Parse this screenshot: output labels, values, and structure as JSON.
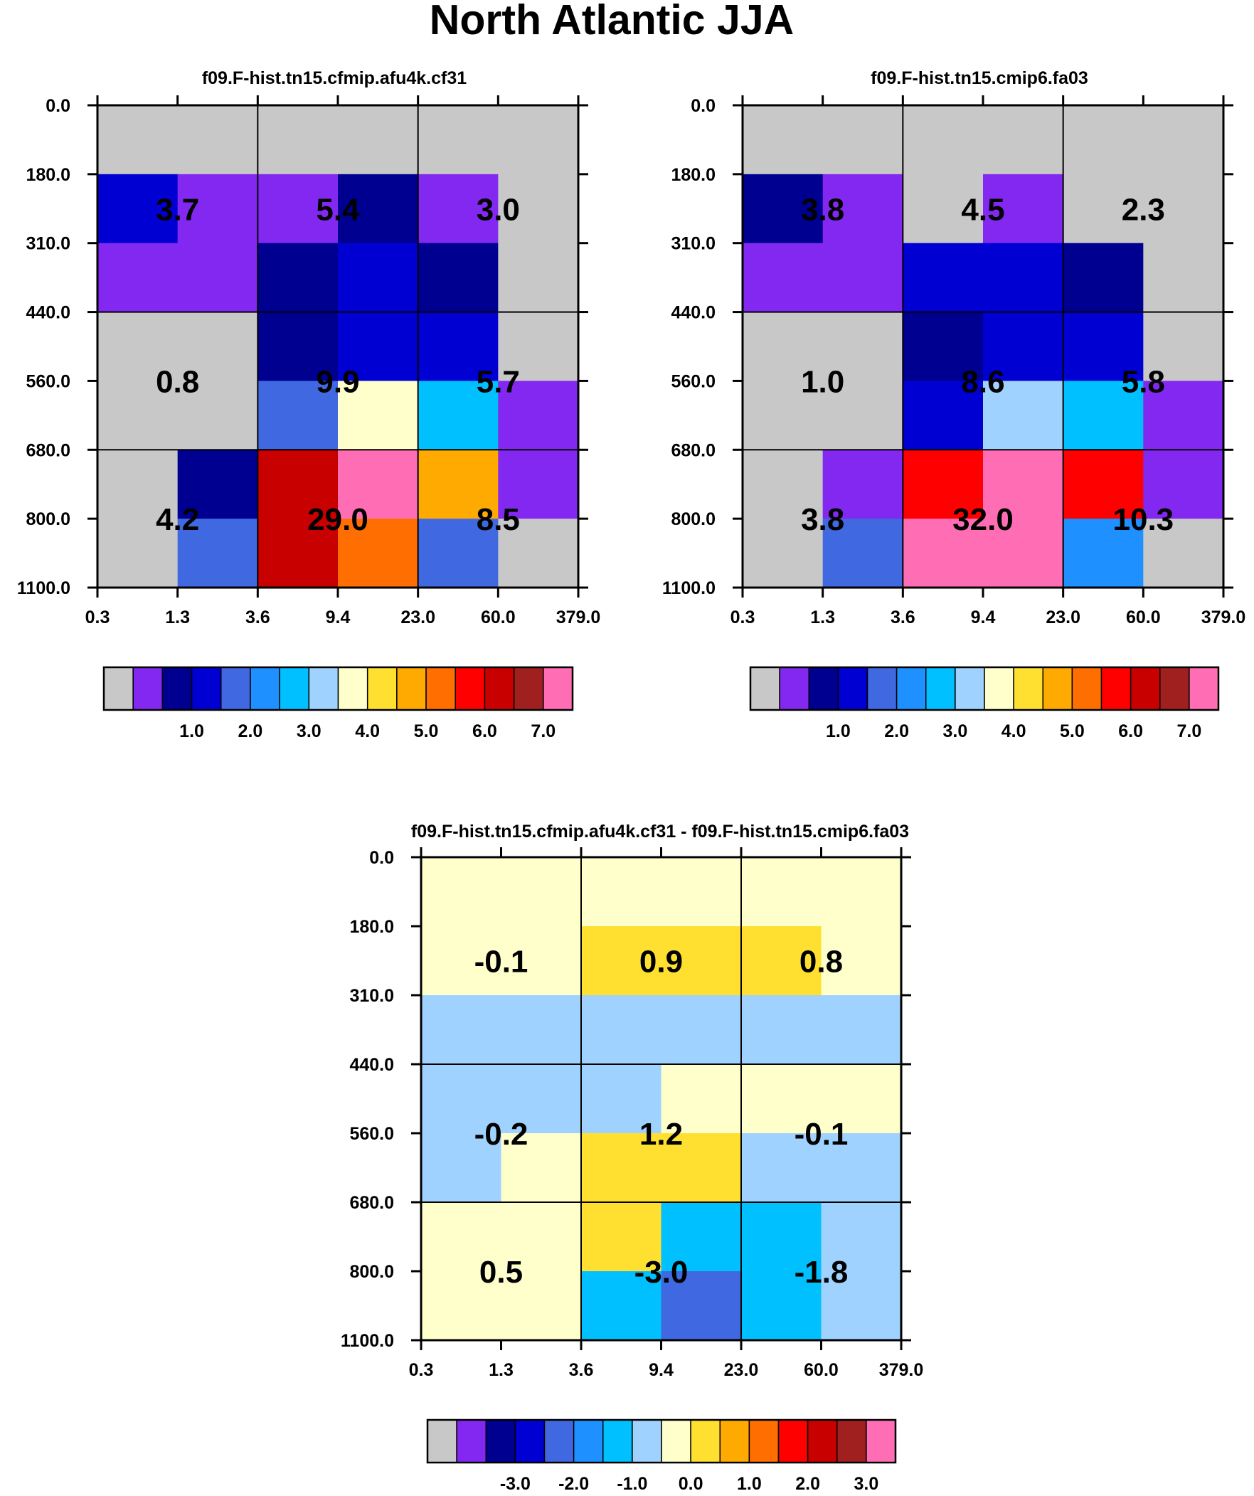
{
  "title": "North Atlantic JJA",
  "colors": {
    "palette": [
      "#c8c8c8",
      "#8228f0",
      "#000090",
      "#0000d2",
      "#4068e0",
      "#1e90ff",
      "#00c0ff",
      "#a0d2ff",
      "#ffffcc",
      "#ffe030",
      "#ffaa00",
      "#ff6e00",
      "#ff0000",
      "#c80000",
      "#a02020",
      "#ff6eb4"
    ],
    "palette_names": [
      "grey",
      "violet",
      "navy",
      "blue",
      "royal-blue",
      "dodger-blue",
      "deep-sky-blue",
      "light-blue",
      "light-yellow",
      "yellow",
      "orange",
      "dark-orange",
      "red",
      "dark-red",
      "brown-red",
      "pink"
    ]
  },
  "chart_data": [
    {
      "type": "heatmap",
      "title": "f09.F-hist.tn15.cfmip.afu4k.cf31",
      "x_ticks": [
        "0.3",
        "1.3",
        "3.6",
        "9.4",
        "23.0",
        "60.0",
        "379.0"
      ],
      "y_ticks": [
        "0.0",
        "180.0",
        "310.0",
        "440.0",
        "560.0",
        "680.0",
        "800.0",
        "1100.0"
      ],
      "grid": true,
      "cells": [
        [
          0,
          0,
          0,
          0,
          0,
          0
        ],
        [
          3,
          1,
          1,
          2,
          1,
          0
        ],
        [
          1,
          1,
          2,
          3,
          2,
          0
        ],
        [
          0,
          0,
          2,
          3,
          3,
          0
        ],
        [
          0,
          0,
          4,
          8,
          6,
          1
        ],
        [
          0,
          2,
          13,
          15,
          10,
          1
        ],
        [
          0,
          4,
          13,
          11,
          4,
          0
        ]
      ],
      "box_values": [
        [
          "3.7",
          "5.4",
          "3.0"
        ],
        [
          "0.8",
          "9.9",
          "5.7"
        ],
        [
          "4.2",
          "29.0",
          "8.5"
        ]
      ],
      "colorbar_labels": [
        "1.0",
        "2.0",
        "3.0",
        "4.0",
        "5.0",
        "6.0",
        "7.0"
      ]
    },
    {
      "type": "heatmap",
      "title": "f09.F-hist.tn15.cmip6.fa03",
      "x_ticks": [
        "0.3",
        "1.3",
        "3.6",
        "9.4",
        "23.0",
        "60.0",
        "379.0"
      ],
      "y_ticks": [
        "0.0",
        "180.0",
        "310.0",
        "440.0",
        "560.0",
        "680.0",
        "800.0",
        "1100.0"
      ],
      "grid": true,
      "cells": [
        [
          0,
          0,
          0,
          0,
          0,
          0
        ],
        [
          2,
          1,
          0,
          1,
          0,
          0
        ],
        [
          1,
          1,
          3,
          3,
          2,
          0
        ],
        [
          0,
          0,
          2,
          3,
          3,
          0
        ],
        [
          0,
          0,
          3,
          7,
          6,
          1
        ],
        [
          0,
          1,
          12,
          15,
          12,
          1
        ],
        [
          0,
          4,
          15,
          15,
          5,
          0
        ]
      ],
      "box_values": [
        [
          "3.8",
          "4.5",
          "2.3"
        ],
        [
          "1.0",
          "8.6",
          "5.8"
        ],
        [
          "3.8",
          "32.0",
          "10.3"
        ]
      ],
      "colorbar_labels": [
        "1.0",
        "2.0",
        "3.0",
        "4.0",
        "5.0",
        "6.0",
        "7.0"
      ]
    },
    {
      "type": "heatmap",
      "title": "f09.F-hist.tn15.cfmip.afu4k.cf31 - f09.F-hist.tn15.cmip6.fa03",
      "x_ticks": [
        "0.3",
        "1.3",
        "3.6",
        "9.4",
        "23.0",
        "60.0",
        "379.0"
      ],
      "y_ticks": [
        "0.0",
        "180.0",
        "310.0",
        "440.0",
        "560.0",
        "680.0",
        "800.0",
        "1100.0"
      ],
      "grid": true,
      "cells": [
        [
          8,
          8,
          8,
          8,
          8,
          8
        ],
        [
          8,
          8,
          9,
          9,
          9,
          8
        ],
        [
          7,
          7,
          7,
          7,
          7,
          7
        ],
        [
          7,
          7,
          7,
          8,
          8,
          8
        ],
        [
          7,
          8,
          9,
          9,
          7,
          7
        ],
        [
          8,
          8,
          9,
          6,
          6,
          7
        ],
        [
          8,
          8,
          6,
          4,
          6,
          7
        ]
      ],
      "box_values": [
        [
          "-0.1",
          "0.9",
          "0.8"
        ],
        [
          "-0.2",
          "1.2",
          "-0.1"
        ],
        [
          "0.5",
          "-3.0",
          "-1.8"
        ]
      ],
      "colorbar_labels": [
        "-3.0",
        "-2.0",
        "-1.0",
        "0.0",
        "1.0",
        "2.0",
        "3.0"
      ]
    }
  ]
}
